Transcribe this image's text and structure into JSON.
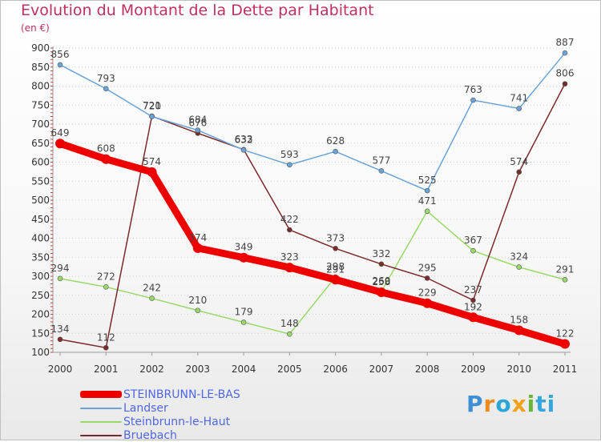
{
  "title": "Evolution du Montant de la Dette par Habitant",
  "subtitle": "(en €)",
  "logo": {
    "text": "Proxiti",
    "letters": [
      "P",
      "r",
      "o",
      "x",
      "i",
      "ti"
    ]
  },
  "chart_data": {
    "type": "line",
    "title": "Evolution du Montant de la Dette par Habitant",
    "ylabel": "(en €)",
    "xlabel": "",
    "ylim": [
      100,
      900
    ],
    "ytick_step": 50,
    "grid": "dotted-horizontal",
    "legend_position": "bottom-left",
    "categories": [
      "2000",
      "2001",
      "2002",
      "2003",
      "2004",
      "2005",
      "2006",
      "2007",
      "2008",
      "2009",
      "2010",
      "2011"
    ],
    "series": [
      {
        "name": "STEINBRUNN-LE-BAS",
        "color": "#ee0000",
        "values": [
          649,
          608,
          574,
          374,
          349,
          323,
          291,
          258,
          229,
          192,
          158,
          122
        ]
      },
      {
        "name": "Landser",
        "color": "#6aa3d8",
        "values": [
          856,
          793,
          720,
          684,
          632,
          593,
          628,
          577,
          525,
          763,
          741,
          887
        ]
      },
      {
        "name": "Steinbrunn-le-Haut",
        "color": "#98d96a",
        "values": [
          294,
          272,
          242,
          210,
          179,
          148,
          298,
          260,
          471,
          367,
          324,
          291
        ]
      },
      {
        "name": "Bruebach",
        "color": "#7b2a2a",
        "values": [
          134,
          112,
          721,
          676,
          633,
          422,
          373,
          332,
          295,
          237,
          574,
          806
        ]
      }
    ]
  }
}
